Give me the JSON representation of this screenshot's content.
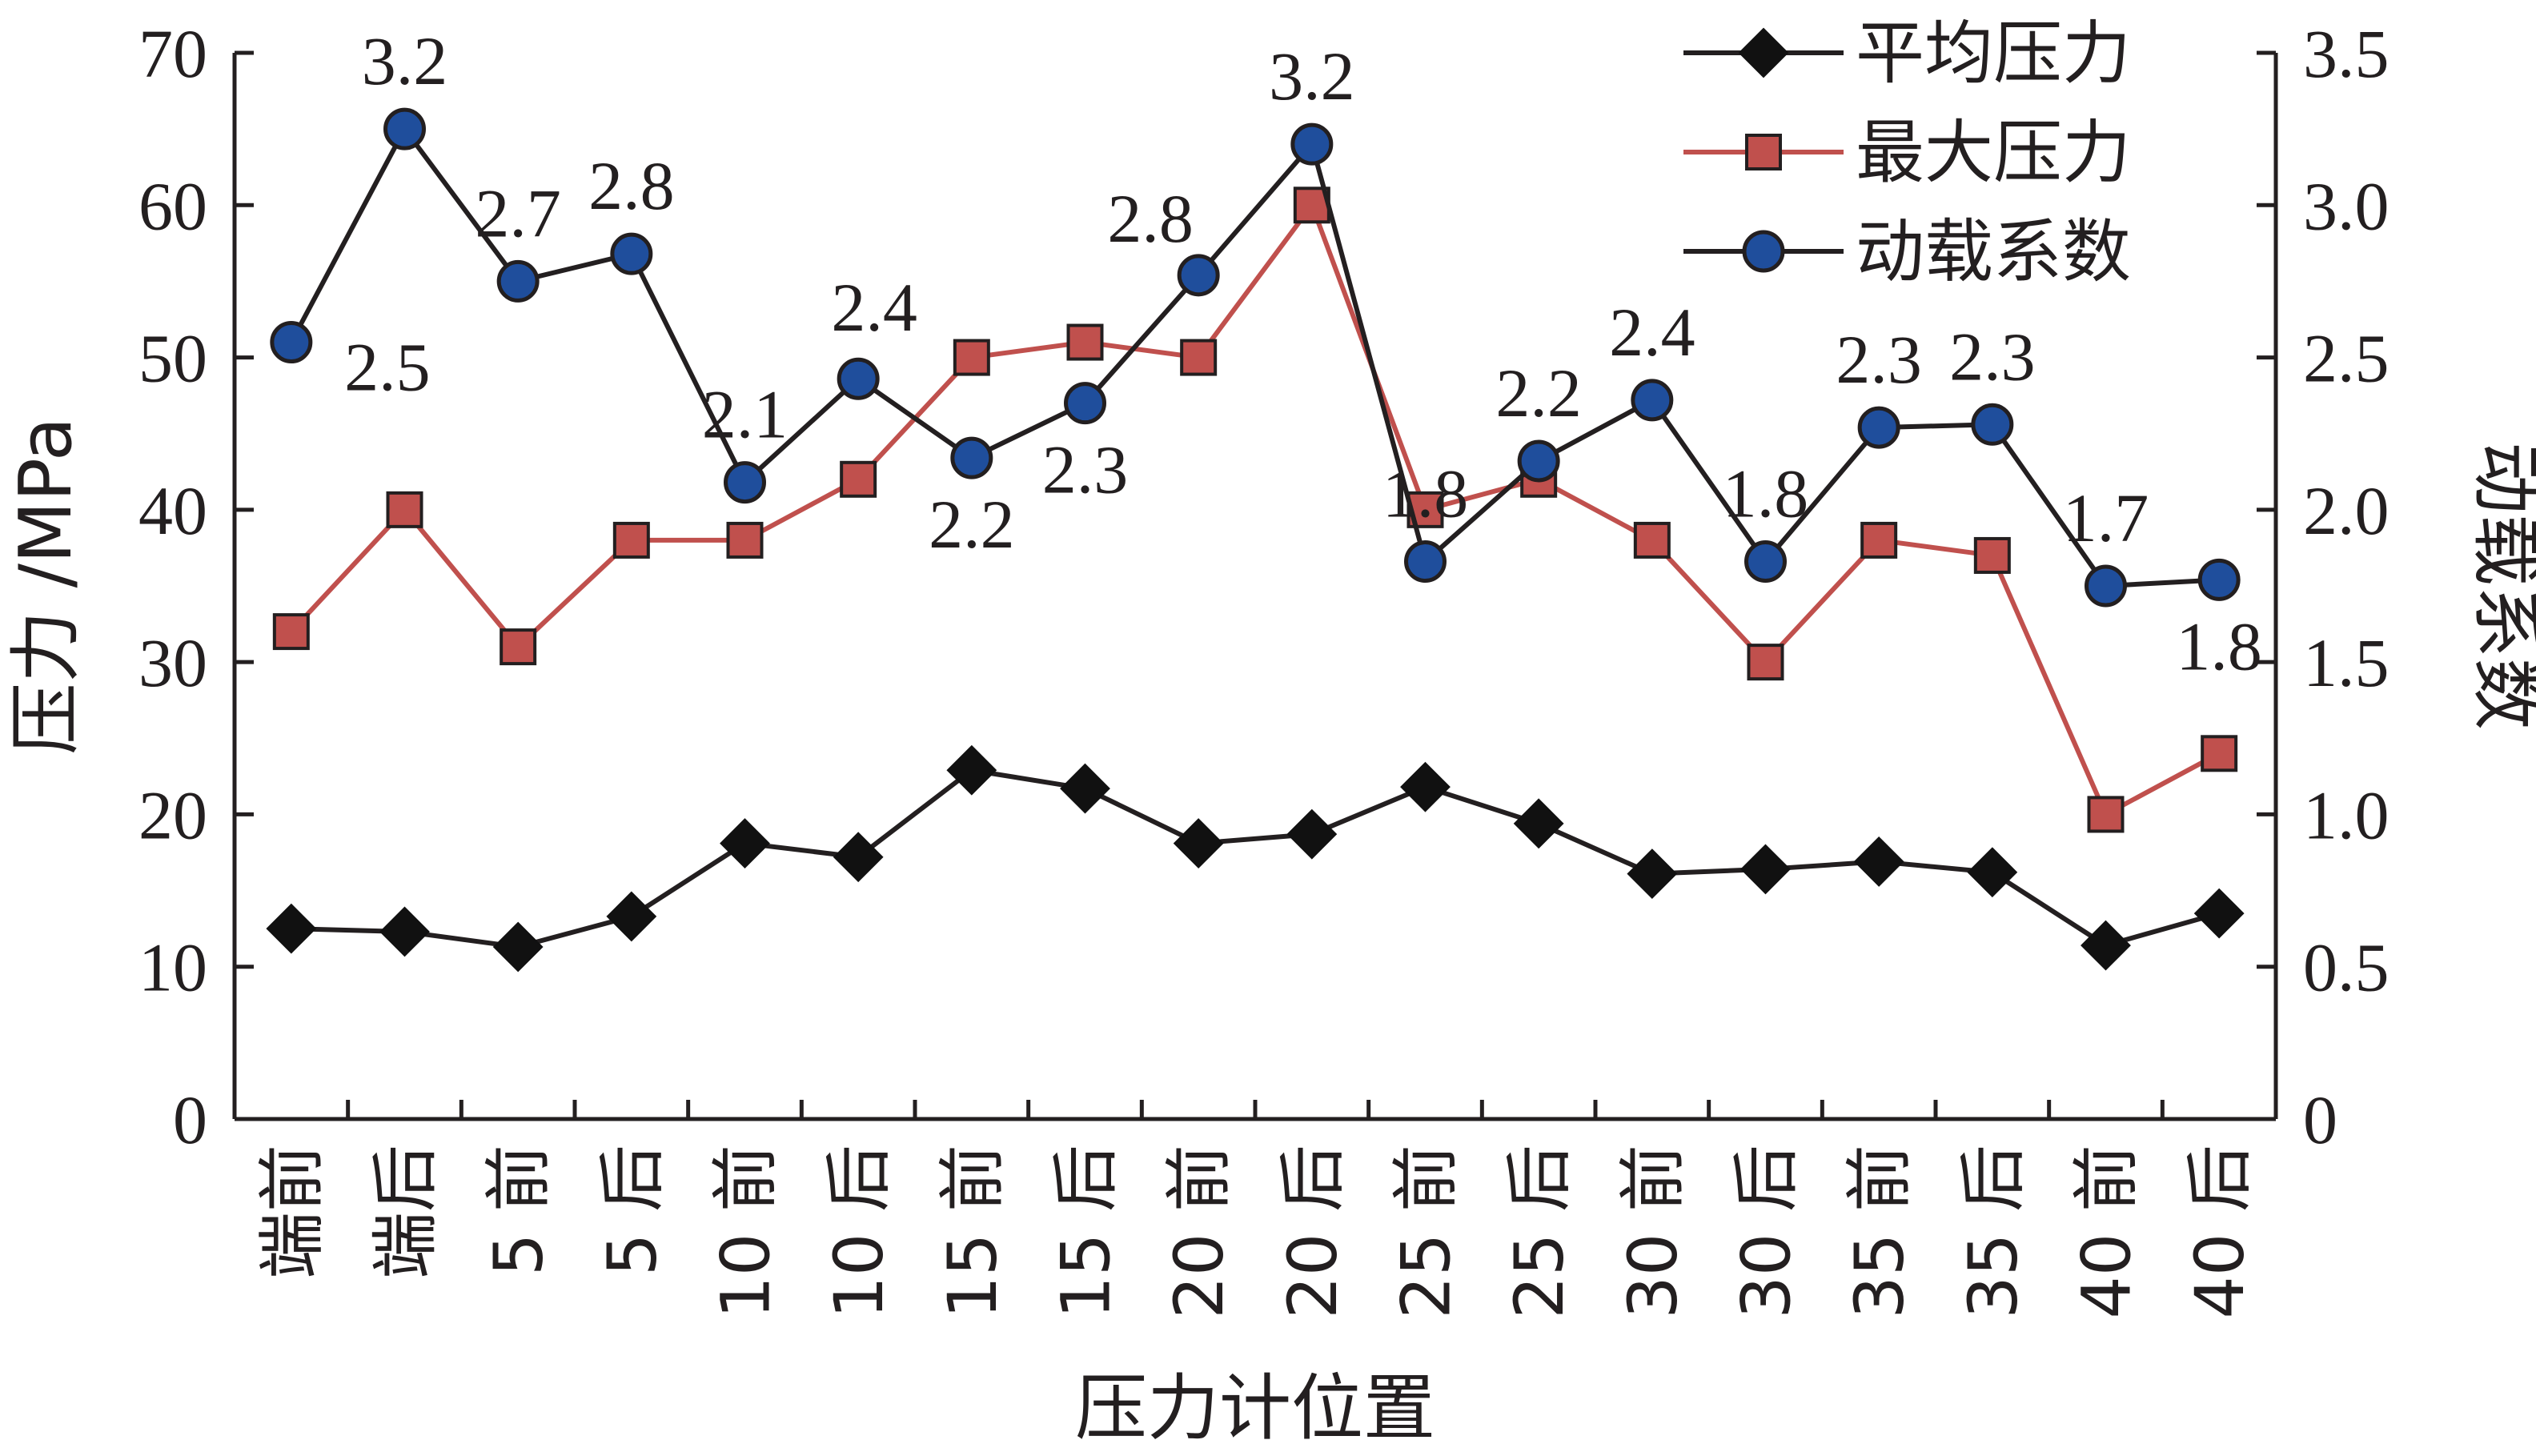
{
  "chart_data": {
    "type": "line",
    "xlabel": "压力计位置",
    "ylabel_left": "压力 /MPa",
    "ylabel_right": "动载系数",
    "ylim_left": [
      0,
      70
    ],
    "ylim_right": [
      0,
      3.5
    ],
    "yticks_left": [
      "0",
      "10",
      "20",
      "30",
      "40",
      "50",
      "60",
      "70"
    ],
    "yticks_right": [
      "0",
      "0.5",
      "1.0",
      "1.5",
      "2.0",
      "2.5",
      "3.0",
      "3.5"
    ],
    "categories": [
      "端前",
      "端后",
      "5 前",
      "5 后",
      "10 前",
      "10 后",
      "15 前",
      "15 后",
      "20 前",
      "20 后",
      "25 前",
      "25 后",
      "30 前",
      "30 后",
      "35 前",
      "35 后",
      "40 前",
      "40 后"
    ],
    "grid": false,
    "legend_position": "top-right",
    "series": [
      {
        "name": "平均压力",
        "axis": "left",
        "color": "#231f20",
        "marker": "diamond",
        "values": [
          12.5,
          12.3,
          11.3,
          13.3,
          18.1,
          17.2,
          22.9,
          21.7,
          18.1,
          18.7,
          21.8,
          19.4,
          16.1,
          16.4,
          16.9,
          16.2,
          11.4,
          13.5
        ]
      },
      {
        "name": "最大压力",
        "axis": "left",
        "color": "#c0504d",
        "marker": "square",
        "values": [
          32,
          40,
          31,
          38,
          38,
          42,
          50,
          51,
          50,
          60,
          40,
          42,
          38,
          30,
          38,
          37,
          20,
          24
        ]
      },
      {
        "name": "动载系数",
        "axis": "right",
        "color": "#231f20",
        "marker_color": "#1f4e9c",
        "marker": "circle",
        "values": [
          2.55,
          3.25,
          2.75,
          2.84,
          2.09,
          2.43,
          2.17,
          2.35,
          2.77,
          3.2,
          1.83,
          2.16,
          2.36,
          1.83,
          2.27,
          2.28,
          1.75,
          1.77
        ],
        "labels": [
          "2.5",
          "3.2",
          "2.7",
          "2.8",
          "2.1",
          "2.4",
          "2.2",
          "2.3",
          "2.8",
          "3.2",
          "1.8",
          "2.2",
          "2.4",
          "1.8",
          "2.3",
          "2.3",
          "1.7",
          "1.8"
        ],
        "label_positions": [
          "below-right",
          "above",
          "above",
          "above",
          "above",
          "above-right",
          "below",
          "below",
          "above-left",
          "above",
          "above",
          "above",
          "above",
          "above",
          "above",
          "above",
          "above",
          "below"
        ]
      }
    ]
  }
}
